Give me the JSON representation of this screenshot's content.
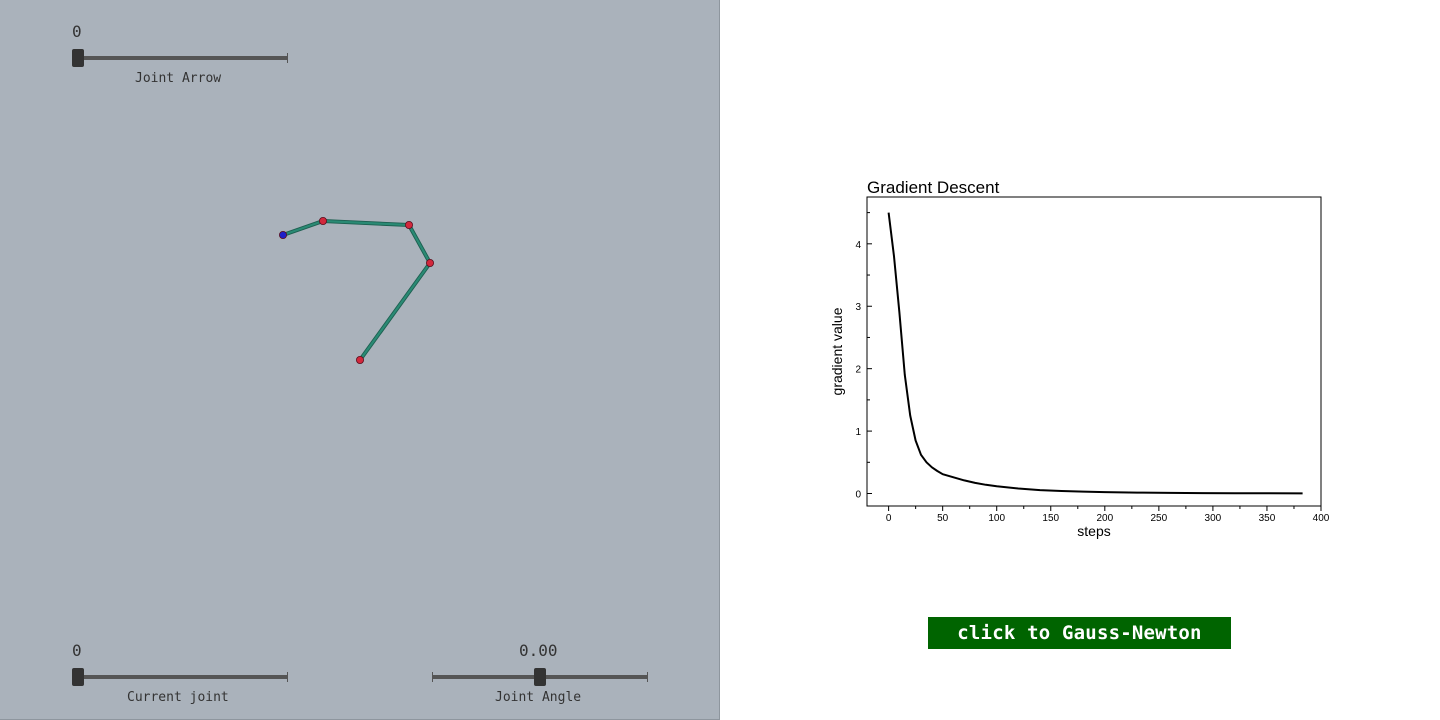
{
  "viewport": {
    "background": "#aab2bb",
    "joint_arrow": {
      "value": "0",
      "label": "Joint Arrow",
      "fraction": 0.0
    },
    "current_joint": {
      "value": "0",
      "label": "Current joint",
      "fraction": 0.0
    },
    "joint_angle": {
      "value": "0.00",
      "label": "Joint Angle",
      "fraction": 0.5
    },
    "arm": {
      "link_color": "#2a8a74",
      "joint_color": "#d2283c",
      "base_color": "#2020c8"
    }
  },
  "chart_data": {
    "type": "line",
    "title": "Gradient Descent",
    "xlabel": "steps",
    "ylabel": "gradient value",
    "xlim": [
      -20,
      400
    ],
    "ylim": [
      -0.2,
      4.75
    ],
    "xticks": [
      0,
      50,
      100,
      150,
      200,
      250,
      300,
      350,
      400
    ],
    "yticks": [
      0,
      1,
      2,
      3,
      4
    ],
    "series": [
      {
        "name": "gradient",
        "x": [
          0,
          5,
          10,
          15,
          20,
          25,
          30,
          35,
          40,
          45,
          50,
          60,
          70,
          80,
          90,
          100,
          120,
          140,
          160,
          180,
          200,
          230,
          260,
          290,
          320,
          350,
          383
        ],
        "y": [
          4.5,
          3.8,
          2.9,
          1.9,
          1.25,
          0.85,
          0.62,
          0.5,
          0.42,
          0.36,
          0.31,
          0.26,
          0.21,
          0.17,
          0.14,
          0.115,
          0.08,
          0.055,
          0.04,
          0.03,
          0.022,
          0.015,
          0.01,
          0.007,
          0.005,
          0.003,
          0.002
        ]
      }
    ]
  },
  "button": {
    "label": "click to Gauss-Newton",
    "color": "#006400"
  }
}
